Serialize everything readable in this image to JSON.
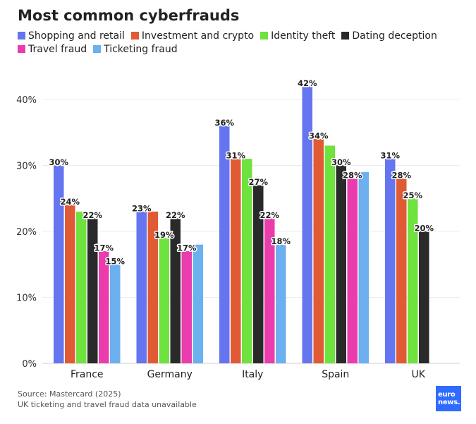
{
  "chart_data": {
    "type": "bar",
    "title": "Most common cyberfrauds",
    "categories": [
      "France",
      "Germany",
      "Italy",
      "Spain",
      "UK"
    ],
    "series": [
      {
        "name": "Shopping and retail",
        "color": "#6574ef",
        "values": [
          30,
          23,
          36,
          42,
          31
        ],
        "labels": [
          "30%",
          "23%",
          "36%",
          "42%",
          "31%"
        ]
      },
      {
        "name": "Investment and crypto",
        "color": "#e05a34",
        "values": [
          24,
          23,
          31,
          34,
          28
        ],
        "labels": [
          "24%",
          "",
          "31%",
          "34%",
          "28%"
        ]
      },
      {
        "name": "Identity theft",
        "color": "#6ee23d",
        "values": [
          23,
          19,
          31,
          33,
          25
        ],
        "labels": [
          "",
          "19%",
          "",
          "",
          "25%"
        ]
      },
      {
        "name": "Dating deception",
        "color": "#2a2a2a",
        "values": [
          22,
          22,
          27,
          30,
          20
        ],
        "labels": [
          "22%",
          "22%",
          "27%",
          "30%",
          "20%"
        ]
      },
      {
        "name": "Travel fraud",
        "color": "#ea3cad",
        "values": [
          17,
          17,
          22,
          28,
          null
        ],
        "labels": [
          "17%",
          "17%",
          "22%",
          "28%",
          ""
        ]
      },
      {
        "name": "Ticketing fraud",
        "color": "#6cb0ef",
        "values": [
          15,
          18,
          18,
          29,
          null
        ],
        "labels": [
          "15%",
          "",
          "18%",
          "",
          ""
        ]
      }
    ],
    "ylim": [
      0,
      45
    ],
    "yticks": [
      0,
      10,
      20,
      30,
      40
    ],
    "ytick_labels": [
      "0%",
      "10%",
      "20%",
      "30%",
      "40%"
    ],
    "grid": true,
    "legend_position": "top"
  },
  "footer": {
    "source": "Source: Mastercard (2025)",
    "note": "UK ticketing and travel fraud data unavailable"
  },
  "logo": {
    "line1": "euro",
    "line2": "news."
  }
}
